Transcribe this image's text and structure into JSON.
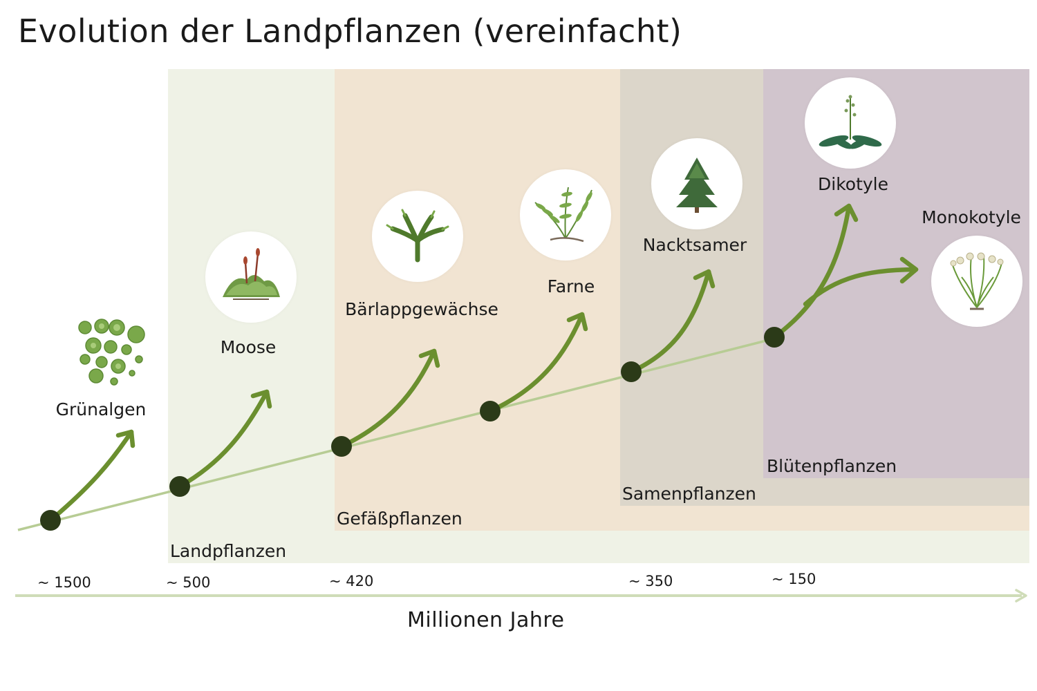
{
  "title": "Evolution der Landpflanzen (vereinfacht)",
  "axis_label": "Millionen Jahre",
  "colors": {
    "zone_land": "#eff2e6",
    "zone_vascular": "#f1e4d2",
    "zone_seed": "#dcd6ca",
    "zone_flower": "#d1c5cd",
    "arrow": "#6b8f2f",
    "node": "#2b3a18",
    "trunk": "#b7cc94",
    "axis": "#cfdcb8"
  },
  "zones": [
    {
      "id": "land",
      "label": "Landpflanzen"
    },
    {
      "id": "vasc",
      "label": "Gefäßpflanzen"
    },
    {
      "id": "seed",
      "label": "Samenpflanzen"
    },
    {
      "id": "flower",
      "label": "Blütenpflanzen"
    }
  ],
  "time_labels": [
    "~ 1500",
    "~ 500",
    "~ 420",
    "~ 350",
    "~ 150"
  ],
  "taxa": [
    {
      "label": "Grünalgen",
      "icon": "green-algae-icon"
    },
    {
      "label": "Moose",
      "icon": "moss-icon"
    },
    {
      "label": "Bärlappgewächse",
      "icon": "clubmoss-icon"
    },
    {
      "label": "Farne",
      "icon": "fern-icon"
    },
    {
      "label": "Nacktsamer",
      "icon": "conifer-icon"
    },
    {
      "label": "Dikotyle",
      "icon": "dicot-plant-icon"
    },
    {
      "label": "Monokotyle",
      "icon": "monocot-plant-icon"
    }
  ]
}
